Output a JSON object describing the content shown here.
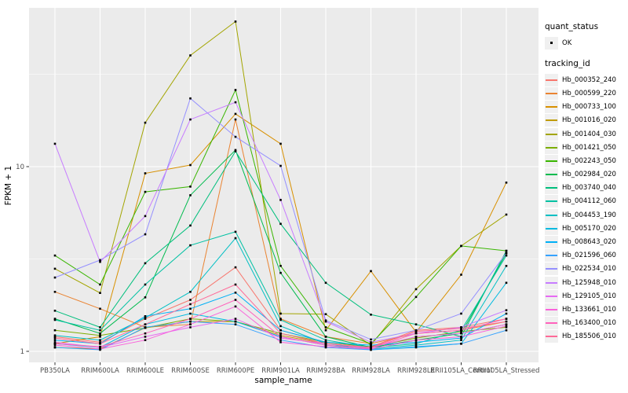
{
  "figure": {
    "panel_bg": "#EBEBEB",
    "grid_color": "#FFFFFF",
    "tick_color": "#333333",
    "axis_text_color": "#4D4D4D",
    "point_color": "#000000"
  },
  "axes": {
    "x_title": "sample_name",
    "y_title": "FPKM + 1",
    "y_tick_labels": [
      "1",
      "10"
    ]
  },
  "legend": {
    "quant_status_title": "quant_status",
    "quant_status_items": [
      {
        "label": "OK",
        "marker": "point"
      }
    ],
    "tracking_id_title": "tracking_id"
  },
  "chart_data": {
    "type": "line",
    "title": "",
    "xlabel": "sample_name",
    "ylabel": "FPKM + 1",
    "yscale": "log10",
    "ylim": [
      0.87,
      72
    ],
    "y_ticks": [
      1,
      10
    ],
    "y_minor_ticks": [
      3.162,
      31.62
    ],
    "grid": "on",
    "legend_position": "right",
    "categories": [
      "PB350LA",
      "RRIM600LA",
      "RRIM600LE",
      "RRIM600SE",
      "RRIM600PE",
      "RRIM901LA",
      "RRIM928BA",
      "RRIM928LA",
      "RRIM928LE",
      "RRII105LA_Control",
      "RRII105LA_Stressed"
    ],
    "series": [
      {
        "name": "Hb_000352_240",
        "color": "#F8766D",
        "values": [
          1.2,
          1.12,
          1.5,
          1.9,
          2.85,
          1.3,
          1.12,
          1.06,
          1.3,
          1.35,
          1.5
        ]
      },
      {
        "name": "Hb_000599_220",
        "color": "#EA8331",
        "values": [
          2.1,
          1.7,
          1.35,
          1.4,
          18.0,
          1.5,
          1.2,
          1.1,
          1.25,
          1.3,
          1.45
        ]
      },
      {
        "name": "Hb_000733_100",
        "color": "#D89000",
        "values": [
          1.1,
          1.2,
          9.2,
          10.2,
          19.3,
          13.3,
          1.3,
          2.72,
          1.27,
          2.6,
          8.2
        ]
      },
      {
        "name": "Hb_001016_020",
        "color": "#C09B00",
        "values": [
          1.05,
          1.03,
          1.34,
          1.45,
          1.45,
          1.22,
          1.1,
          1.05,
          1.2,
          1.25,
          1.4
        ]
      },
      {
        "name": "Hb_001404_030",
        "color": "#A3A500",
        "values": [
          2.8,
          2.07,
          17.3,
          40.0,
          61.0,
          1.6,
          1.59,
          1.08,
          2.17,
          3.72,
          5.5
        ]
      },
      {
        "name": "Hb_001421_050",
        "color": "#7CAE00",
        "values": [
          1.3,
          1.22,
          1.34,
          1.5,
          1.45,
          1.25,
          1.12,
          1.06,
          1.18,
          1.28,
          1.35
        ]
      },
      {
        "name": "Hb_002243_050",
        "color": "#39B600",
        "values": [
          3.3,
          2.3,
          7.3,
          7.8,
          26.0,
          2.9,
          1.35,
          1.1,
          1.97,
          3.72,
          3.5
        ]
      },
      {
        "name": "Hb_002984_020",
        "color": "#00BB4E",
        "values": [
          1.5,
          1.25,
          1.96,
          7.0,
          12.3,
          2.66,
          1.2,
          1.05,
          1.15,
          1.25,
          3.4
        ]
      },
      {
        "name": "Hb_003740_040",
        "color": "#00BF7D",
        "values": [
          1.66,
          1.35,
          3.0,
          4.8,
          12.1,
          4.9,
          2.35,
          1.58,
          1.4,
          1.2,
          3.5
        ]
      },
      {
        "name": "Hb_004112_060",
        "color": "#00C1A3",
        "values": [
          1.48,
          1.3,
          2.3,
          3.75,
          4.44,
          1.48,
          1.15,
          1.05,
          1.1,
          1.3,
          3.3
        ]
      },
      {
        "name": "Hb_004453_190",
        "color": "#00BFC4",
        "values": [
          1.22,
          1.15,
          1.52,
          2.1,
          4.1,
          1.37,
          1.1,
          1.03,
          1.08,
          1.15,
          2.9
        ]
      },
      {
        "name": "Hb_005170_020",
        "color": "#00BAE0",
        "values": [
          1.1,
          1.05,
          1.4,
          1.6,
          1.45,
          1.2,
          1.08,
          1.02,
          1.05,
          1.1,
          2.35
        ]
      },
      {
        "name": "Hb_008643_020",
        "color": "#00B0F6",
        "values": [
          1.15,
          1.1,
          1.55,
          1.7,
          2.08,
          1.3,
          1.12,
          1.08,
          1.12,
          1.18,
          1.6
        ]
      },
      {
        "name": "Hb_021596_060",
        "color": "#35A2FF",
        "values": [
          1.05,
          1.02,
          1.35,
          1.45,
          1.4,
          1.15,
          1.05,
          1.02,
          1.06,
          1.1,
          1.3
        ]
      },
      {
        "name": "Hb_022534_010",
        "color": "#9590FF",
        "values": [
          2.51,
          3.12,
          4.3,
          23.4,
          14.5,
          10.1,
          1.47,
          1.16,
          1.3,
          1.6,
          3.4
        ]
      },
      {
        "name": "Hb_125948_010",
        "color": "#C77CFF",
        "values": [
          13.3,
          3.05,
          5.4,
          18.0,
          22.3,
          6.6,
          1.45,
          1.12,
          1.25,
          1.35,
          1.67
        ]
      },
      {
        "name": "Hb_129105_010",
        "color": "#E76BF3",
        "values": [
          1.12,
          1.05,
          1.2,
          1.35,
          1.5,
          1.18,
          1.1,
          1.05,
          1.2,
          1.25,
          1.4
        ]
      },
      {
        "name": "Hb_133661_010",
        "color": "#FA62DB",
        "values": [
          1.08,
          1.03,
          1.15,
          1.4,
          1.75,
          1.12,
          1.06,
          1.03,
          1.15,
          1.2,
          1.37
        ]
      },
      {
        "name": "Hb_163400_010",
        "color": "#FF62BC",
        "values": [
          1.1,
          1.06,
          1.25,
          1.5,
          1.9,
          1.2,
          1.08,
          1.04,
          1.25,
          1.3,
          1.5
        ]
      },
      {
        "name": "Hb_185506_010",
        "color": "#FF6A98",
        "values": [
          1.18,
          1.1,
          1.4,
          1.8,
          2.3,
          1.25,
          1.1,
          1.05,
          1.28,
          1.33,
          1.45
        ]
      }
    ]
  }
}
